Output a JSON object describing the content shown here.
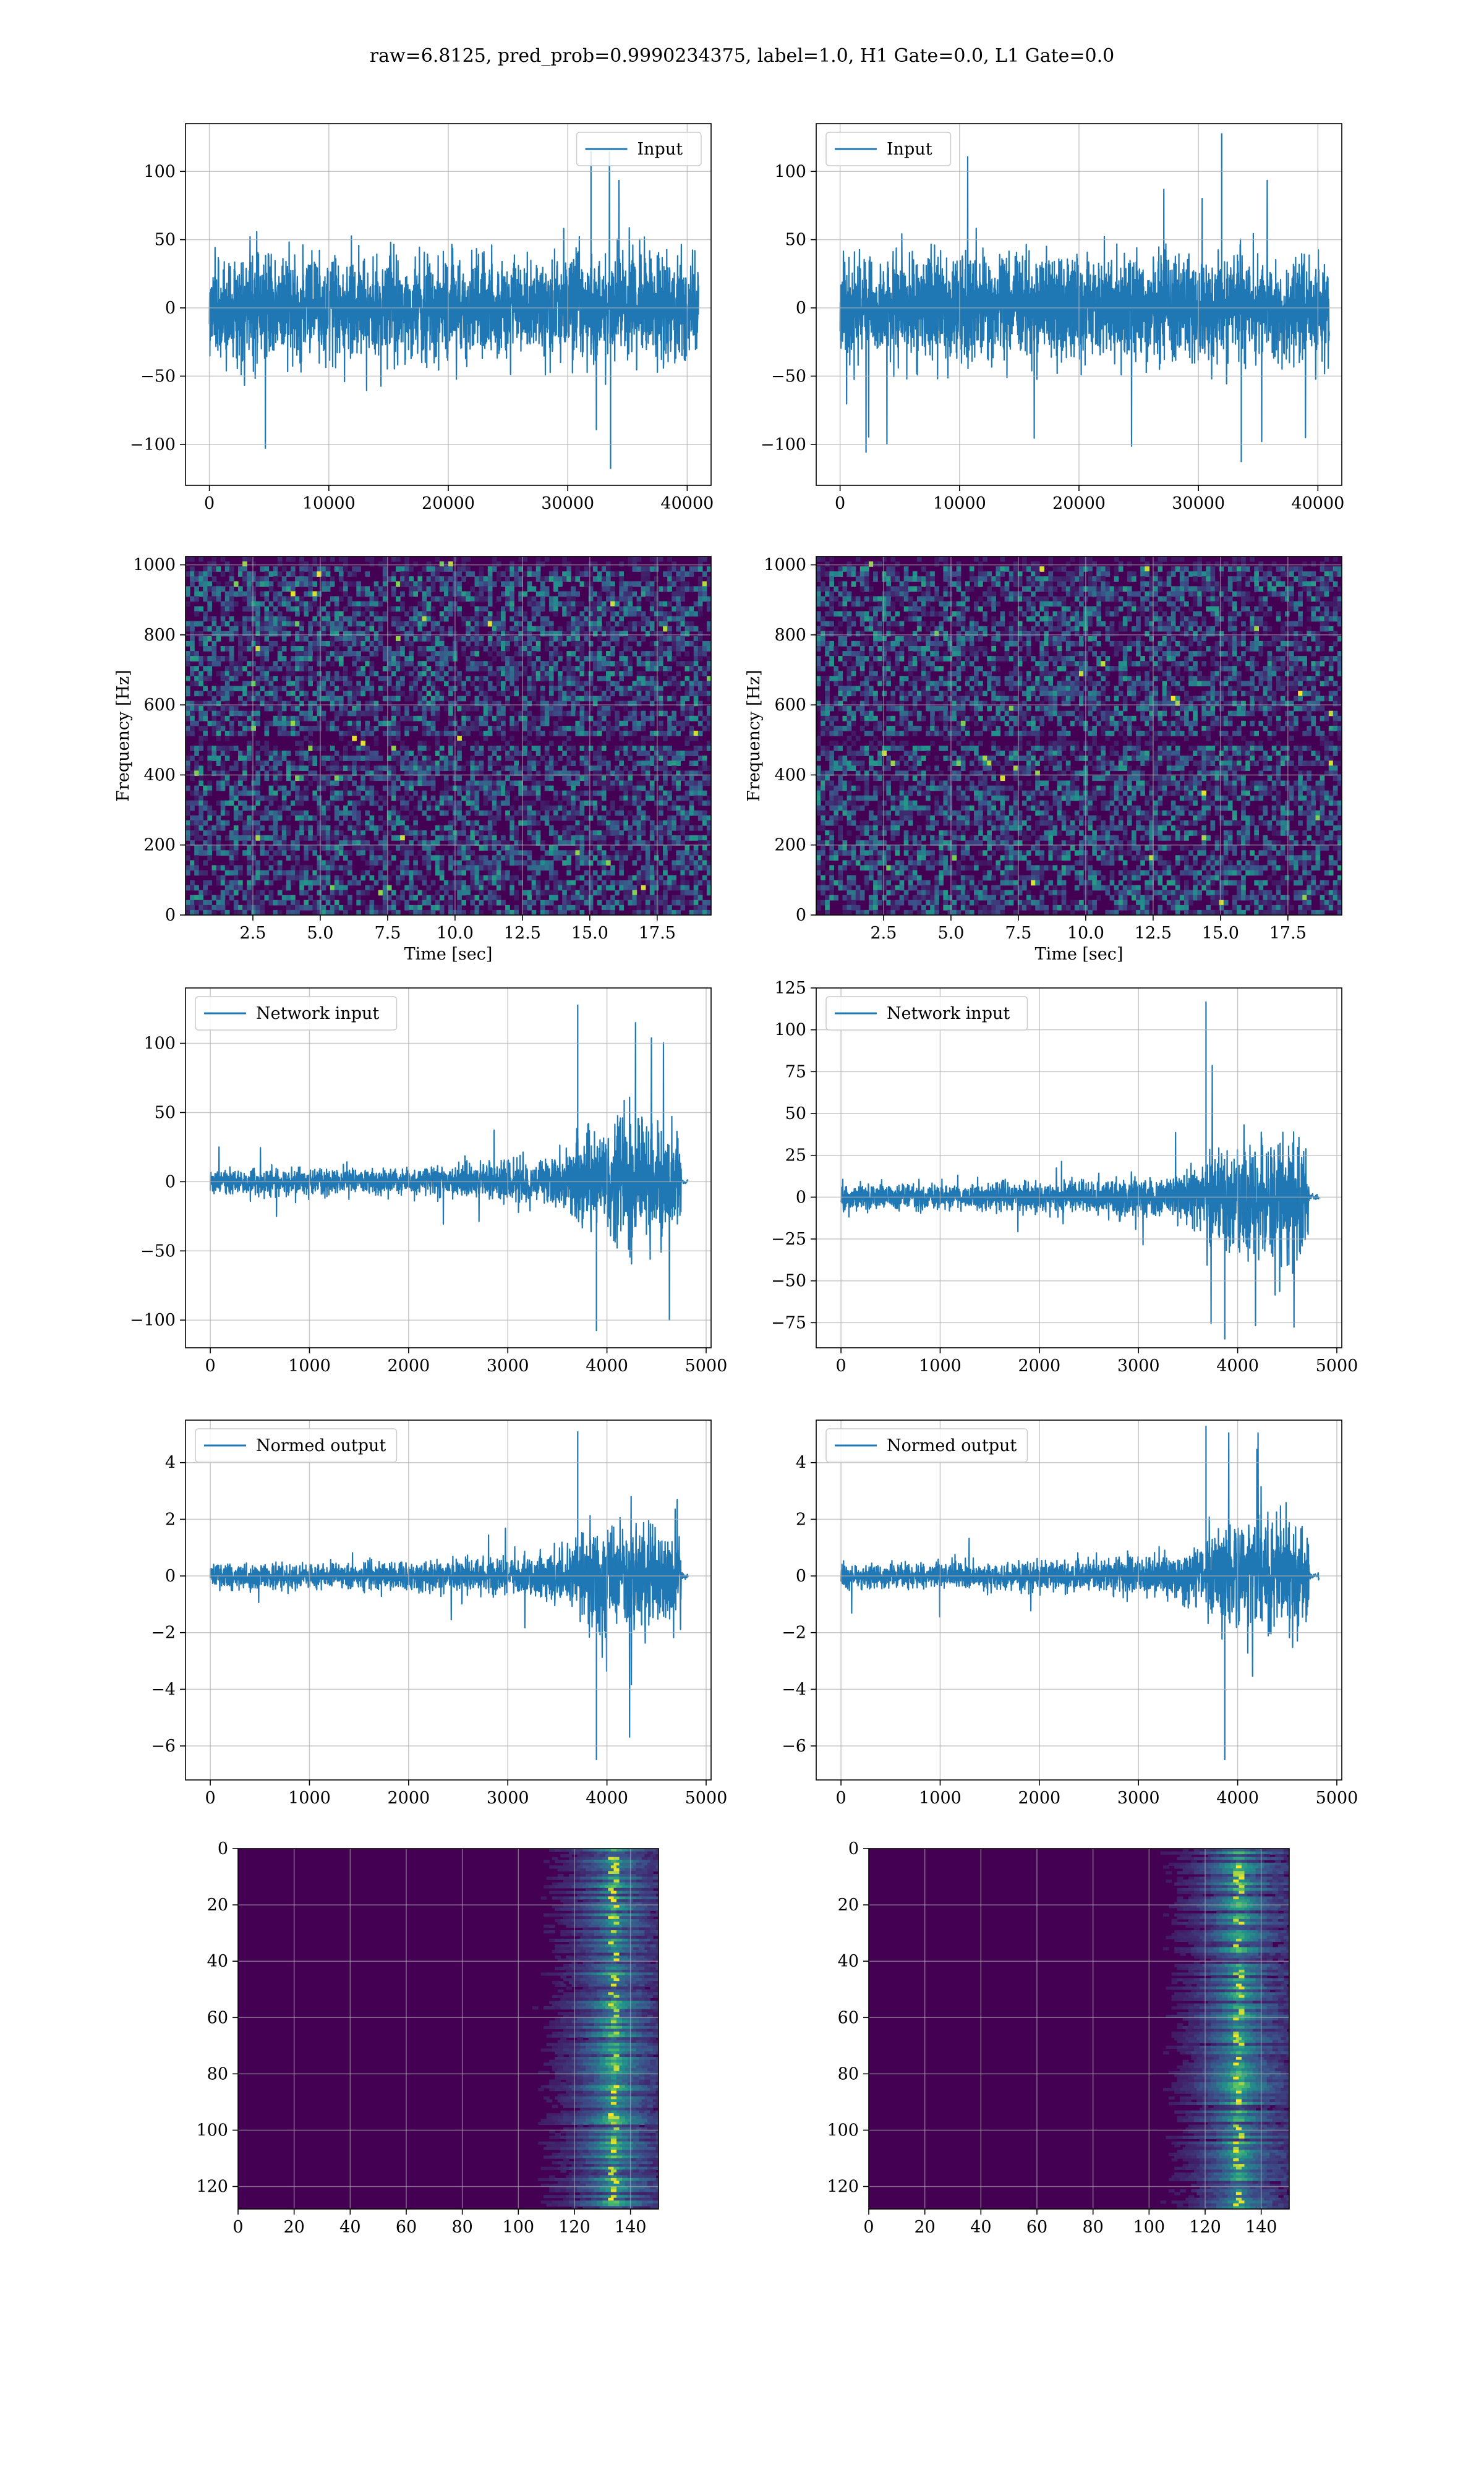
{
  "figure": {
    "suptitle": "raw=6.8125, pred_prob=0.9990234375, label=1.0, H1 Gate=0.0, L1 Gate=0.0"
  },
  "colors": {
    "line": "#1f77b4",
    "grid": "#b0b0b0",
    "viridis_dark": "#440154",
    "viridis_mid": "#21918c",
    "viridis_bright": "#fde725"
  },
  "chart_data": [
    {
      "type": "line",
      "name": "input-h1",
      "legend": [
        "Input"
      ],
      "legend_loc": "upper right",
      "title": "",
      "xlabel": "",
      "ylabel": "",
      "xlim": [
        -2000,
        42000
      ],
      "ylim": [
        -130,
        135
      ],
      "xticks": [
        0,
        10000,
        20000,
        30000,
        40000
      ],
      "yticks": [
        -100,
        -50,
        0,
        50,
        100
      ],
      "grid": true,
      "signal": {
        "n": 40960,
        "envelope": [
          [
            0,
            40
          ],
          [
            40960,
            40
          ]
        ],
        "peak": 115,
        "trough": -118
      }
    },
    {
      "type": "line",
      "name": "input-l1",
      "legend": [
        "Input"
      ],
      "legend_loc": "upper left",
      "title": "",
      "xlabel": "",
      "ylabel": "",
      "xlim": [
        -2000,
        42000
      ],
      "ylim": [
        -130,
        135
      ],
      "xticks": [
        0,
        10000,
        20000,
        30000,
        40000
      ],
      "yticks": [
        -100,
        -50,
        0,
        50,
        100
      ],
      "grid": true,
      "signal": {
        "n": 40960,
        "envelope": [
          [
            0,
            40
          ],
          [
            40960,
            40
          ]
        ],
        "peak": 128,
        "trough": -113
      }
    },
    {
      "type": "heatmap",
      "name": "spectrogram-h1",
      "subtype": "spectrogram",
      "title": "",
      "xlabel": "Time [sec]",
      "ylabel": "Frequency [Hz]",
      "xlim": [
        0,
        19.5
      ],
      "ylim": [
        0,
        1024
      ],
      "xticks": [
        2.5,
        5.0,
        7.5,
        10.0,
        12.5,
        15.0,
        17.5
      ],
      "yticks": [
        0,
        200,
        400,
        600,
        800,
        1000
      ],
      "grid": true,
      "colormap": "viridis",
      "dark_bands_hz": [
        500,
        1010
      ]
    },
    {
      "type": "heatmap",
      "name": "spectrogram-l1",
      "subtype": "spectrogram",
      "title": "",
      "xlabel": "Time [sec]",
      "ylabel": "Frequency [Hz]",
      "xlim": [
        0,
        19.5
      ],
      "ylim": [
        0,
        1024
      ],
      "xticks": [
        2.5,
        5.0,
        7.5,
        10.0,
        12.5,
        15.0,
        17.5
      ],
      "yticks": [
        0,
        200,
        400,
        600,
        800,
        1000
      ],
      "grid": true,
      "colormap": "viridis",
      "dark_bands_hz": [
        500,
        1010
      ]
    },
    {
      "type": "line",
      "name": "network-input-h1",
      "legend": [
        "Network input"
      ],
      "legend_loc": "upper left",
      "title": "",
      "xlabel": "",
      "ylabel": "",
      "xlim": [
        -250,
        5050
      ],
      "ylim": [
        -120,
        140
      ],
      "xticks": [
        0,
        1000,
        2000,
        3000,
        4000,
        5000
      ],
      "yticks": [
        -100,
        -50,
        0,
        50,
        100
      ],
      "grid": true,
      "signal": {
        "n": 4750,
        "tail_end": 4820,
        "envelope": [
          [
            0,
            9
          ],
          [
            1500,
            10
          ],
          [
            2500,
            12
          ],
          [
            3300,
            16
          ],
          [
            3650,
            22
          ],
          [
            3700,
            36
          ],
          [
            4000,
            42
          ],
          [
            4400,
            44
          ],
          [
            4700,
            38
          ]
        ],
        "peak": 128,
        "trough": -108
      }
    },
    {
      "type": "line",
      "name": "network-input-l1",
      "legend": [
        "Network input"
      ],
      "legend_loc": "upper left",
      "title": "",
      "xlabel": "",
      "ylabel": "",
      "xlim": [
        -250,
        5050
      ],
      "ylim": [
        -90,
        125
      ],
      "xticks": [
        0,
        1000,
        2000,
        3000,
        4000,
        5000
      ],
      "yticks": [
        -75,
        -50,
        -25,
        0,
        25,
        50,
        75,
        100,
        125
      ],
      "grid": true,
      "signal": {
        "n": 4720,
        "tail_end": 4820,
        "envelope": [
          [
            0,
            8
          ],
          [
            1500,
            9
          ],
          [
            2500,
            11
          ],
          [
            3300,
            14
          ],
          [
            3650,
            20
          ],
          [
            3750,
            32
          ],
          [
            4100,
            36
          ],
          [
            4400,
            38
          ],
          [
            4700,
            32
          ]
        ],
        "peak": 117,
        "trough": -85
      }
    },
    {
      "type": "line",
      "name": "normed-output-h1",
      "legend": [
        "Normed output"
      ],
      "legend_loc": "upper left",
      "title": "",
      "xlabel": "",
      "ylabel": "",
      "xlim": [
        -250,
        5050
      ],
      "ylim": [
        -7.2,
        5.5
      ],
      "xticks": [
        0,
        1000,
        2000,
        3000,
        4000,
        5000
      ],
      "yticks": [
        -6,
        -4,
        -2,
        0,
        2,
        4
      ],
      "grid": true,
      "signal": {
        "n": 4750,
        "tail_end": 4820,
        "envelope": [
          [
            0,
            0.45
          ],
          [
            1500,
            0.5
          ],
          [
            2500,
            0.6
          ],
          [
            3300,
            0.8
          ],
          [
            3650,
            1.1
          ],
          [
            3700,
            1.8
          ],
          [
            4000,
            2.1
          ],
          [
            4400,
            2.2
          ],
          [
            4700,
            1.9
          ]
        ],
        "peak": 5.1,
        "trough": -6.5
      }
    },
    {
      "type": "line",
      "name": "normed-output-l1",
      "legend": [
        "Normed output"
      ],
      "legend_loc": "upper left",
      "title": "",
      "xlabel": "",
      "ylabel": "",
      "xlim": [
        -250,
        5050
      ],
      "ylim": [
        -7.2,
        5.5
      ],
      "xticks": [
        0,
        1000,
        2000,
        3000,
        4000,
        5000
      ],
      "yticks": [
        -6,
        -4,
        -2,
        0,
        2,
        4
      ],
      "grid": true,
      "signal": {
        "n": 4720,
        "tail_end": 4820,
        "envelope": [
          [
            0,
            0.45
          ],
          [
            1500,
            0.5
          ],
          [
            2500,
            0.6
          ],
          [
            3300,
            0.8
          ],
          [
            3650,
            1.2
          ],
          [
            3750,
            2.0
          ],
          [
            4100,
            2.2
          ],
          [
            4400,
            2.3
          ],
          [
            4700,
            2.0
          ]
        ],
        "peak": 5.3,
        "trough": -6.5
      }
    },
    {
      "type": "heatmap",
      "name": "feature-map-h1",
      "subtype": "image",
      "title": "",
      "xlabel": "",
      "ylabel": "",
      "xlim": [
        0,
        150
      ],
      "ylim": [
        128,
        0
      ],
      "xticks": [
        0,
        20,
        40,
        60,
        80,
        100,
        120,
        140
      ],
      "yticks": [
        0,
        20,
        40,
        60,
        80,
        100,
        120
      ],
      "grid": true,
      "colormap": "viridis",
      "rows": 128,
      "cols": 150,
      "active_from_col": 100,
      "ridge_col": 133
    },
    {
      "type": "heatmap",
      "name": "feature-map-l1",
      "subtype": "image",
      "title": "",
      "xlabel": "",
      "ylabel": "",
      "xlim": [
        0,
        150
      ],
      "ylim": [
        128,
        0
      ],
      "xticks": [
        0,
        20,
        40,
        60,
        80,
        100,
        120,
        140
      ],
      "yticks": [
        0,
        20,
        40,
        60,
        80,
        100,
        120
      ],
      "grid": true,
      "colormap": "viridis",
      "rows": 128,
      "cols": 150,
      "active_from_col": 100,
      "ridge_col": 131
    }
  ]
}
